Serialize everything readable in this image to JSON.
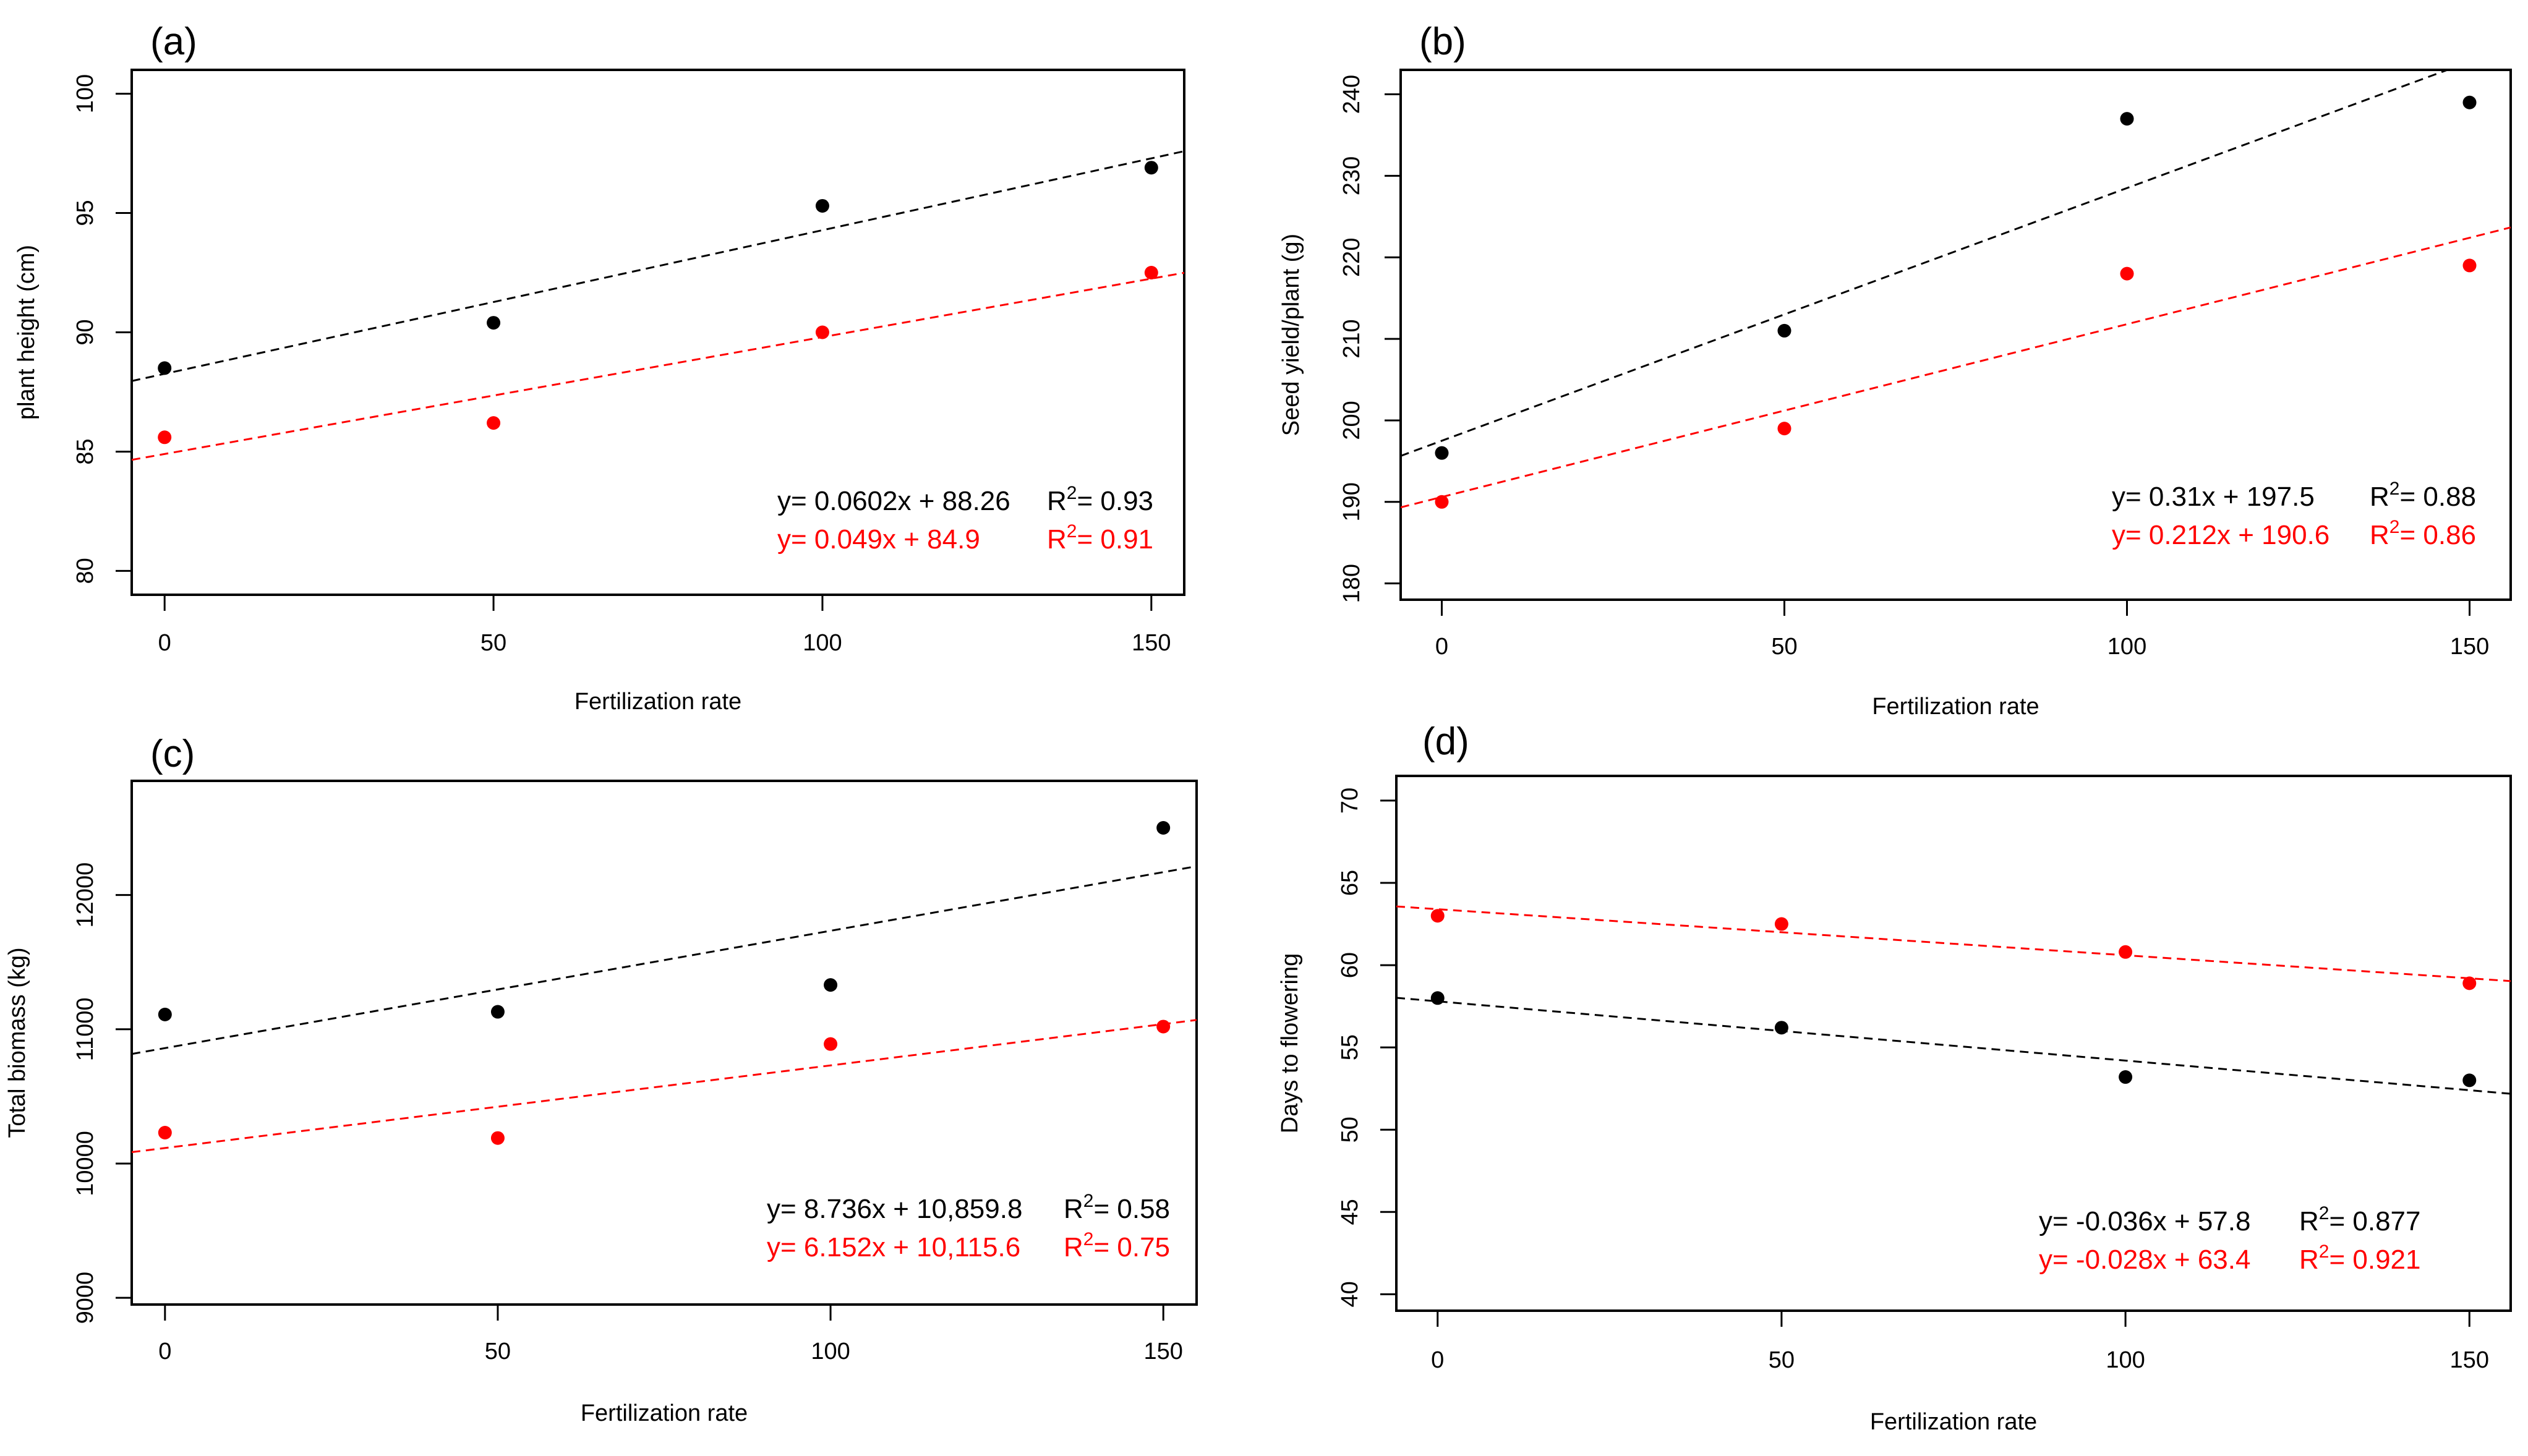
{
  "figure": {
    "background": "#ffffff"
  },
  "chart_data": [
    {
      "type": "scatter",
      "panel_label": "(a)",
      "xlabel": "Fertilization rate",
      "ylabel": "plant height (cm)",
      "xlim": [
        -5,
        155
      ],
      "ylim": [
        79,
        101
      ],
      "xticks": [
        0,
        50,
        100,
        150
      ],
      "xtick_labels": [
        "0",
        "50",
        "100",
        "150"
      ],
      "yticks": [
        80,
        85,
        90,
        95,
        100
      ],
      "ytick_labels": [
        "80",
        "85",
        "90",
        "95",
        "100"
      ],
      "grid": false,
      "series": [
        {
          "name": "black series",
          "color": "#000000",
          "x": [
            0,
            50,
            100,
            150
          ],
          "y": [
            88.5,
            90.4,
            95.3,
            96.9
          ],
          "fit": {
            "slope": 0.0602,
            "intercept": 88.26
          }
        },
        {
          "name": "red series",
          "color": "#ff0000",
          "x": [
            0,
            50,
            100,
            150
          ],
          "y": [
            85.6,
            86.2,
            90.0,
            92.5
          ],
          "fit": {
            "slope": 0.049,
            "intercept": 84.9
          }
        }
      ],
      "annotations": [
        {
          "eq": "y= 0.0602x + 88.26",
          "r2_prefix": "R",
          "r2_sup": "2",
          "r2_value": "= 0.93",
          "color": "#000000"
        },
        {
          "eq": "y= 0.049x + 84.9",
          "r2_prefix": "R",
          "r2_sup": "2",
          "r2_value": "= 0.91",
          "color": "#ff0000"
        }
      ]
    },
    {
      "type": "scatter",
      "panel_label": "(b)",
      "xlabel": "Fertilization rate",
      "ylabel": "Seed yield/plant (g)",
      "xlim": [
        -6,
        156
      ],
      "ylim": [
        178,
        243
      ],
      "xticks": [
        0,
        50,
        100,
        150
      ],
      "xtick_labels": [
        "0",
        "50",
        "100",
        "150"
      ],
      "yticks": [
        180,
        190,
        200,
        210,
        220,
        230,
        240
      ],
      "ytick_labels": [
        "180",
        "190",
        "200",
        "210",
        "220",
        "230",
        "240"
      ],
      "grid": false,
      "series": [
        {
          "name": "black series",
          "color": "#000000",
          "x": [
            0,
            50,
            100,
            150
          ],
          "y": [
            196,
            211,
            237,
            239
          ],
          "fit": {
            "slope": 0.31,
            "intercept": 197.5
          }
        },
        {
          "name": "red series",
          "color": "#ff0000",
          "x": [
            0,
            50,
            100,
            150
          ],
          "y": [
            190,
            199,
            218,
            219
          ],
          "fit": {
            "slope": 0.212,
            "intercept": 190.6
          }
        }
      ],
      "annotations": [
        {
          "eq": "y= 0.31x + 197.5",
          "r2_prefix": "R",
          "r2_sup": "2",
          "r2_value": "= 0.88",
          "color": "#000000"
        },
        {
          "eq": "y= 0.212x + 190.6",
          "r2_prefix": "R",
          "r2_sup": "2",
          "r2_value": "= 0.86",
          "color": "#ff0000"
        }
      ]
    },
    {
      "type": "scatter",
      "panel_label": "(c)",
      "xlabel": "Fertilization rate",
      "ylabel": "Total biomass (kg)",
      "xlim": [
        -5,
        155
      ],
      "ylim": [
        8950,
        12850
      ],
      "xticks": [
        0,
        50,
        100,
        150
      ],
      "xtick_labels": [
        "0",
        "50",
        "100",
        "150"
      ],
      "yticks": [
        9000,
        10000,
        11000,
        12000
      ],
      "ytick_labels": [
        "9000",
        "10000",
        "11000",
        "12000"
      ],
      "grid": false,
      "series": [
        {
          "name": "black series",
          "color": "#000000",
          "x": [
            0,
            50,
            100,
            150
          ],
          "y": [
            11110,
            11130,
            11330,
            12500
          ],
          "fit": {
            "slope": 8.736,
            "intercept": 10859.8
          }
        },
        {
          "name": "red series",
          "color": "#ff0000",
          "x": [
            0,
            50,
            100,
            150
          ],
          "y": [
            10230,
            10190,
            10890,
            11020
          ],
          "fit": {
            "slope": 6.152,
            "intercept": 10115.6
          }
        }
      ],
      "annotations": [
        {
          "eq": "y= 8.736x + 10,859.8",
          "r2_prefix": "R",
          "r2_sup": "2",
          "r2_value": "= 0.58",
          "color": "#000000"
        },
        {
          "eq": "y= 6.152x + 10,115.6",
          "r2_prefix": "R",
          "r2_sup": "2",
          "r2_value": "= 0.75",
          "color": "#ff0000"
        }
      ]
    },
    {
      "type": "scatter",
      "panel_label": "(d)",
      "xlabel": "Fertilization rate",
      "ylabel": "Days to flowering",
      "xlim": [
        -6,
        156
      ],
      "ylim": [
        39,
        71.5
      ],
      "xticks": [
        0,
        50,
        100,
        150
      ],
      "xtick_labels": [
        "0",
        "50",
        "100",
        "150"
      ],
      "yticks": [
        40,
        45,
        50,
        55,
        60,
        65,
        70
      ],
      "ytick_labels": [
        "40",
        "45",
        "50",
        "55",
        "60",
        "65",
        "70"
      ],
      "grid": false,
      "series": [
        {
          "name": "black series",
          "color": "#000000",
          "x": [
            0,
            50,
            100,
            150
          ],
          "y": [
            58.0,
            56.2,
            53.2,
            53.0
          ],
          "fit": {
            "slope": -0.036,
            "intercept": 57.8
          }
        },
        {
          "name": "red series",
          "color": "#ff0000",
          "x": [
            0,
            50,
            100,
            150
          ],
          "y": [
            63.0,
            62.5,
            60.8,
            58.9
          ],
          "fit": {
            "slope": -0.028,
            "intercept": 63.4
          }
        }
      ],
      "annotations": [
        {
          "eq": "y= -0.036x + 57.8",
          "r2_prefix": "R",
          "r2_sup": "2",
          "r2_value": "= 0.877",
          "color": "#000000"
        },
        {
          "eq": "y= -0.028x + 63.4",
          "r2_prefix": "R",
          "r2_sup": "2",
          "r2_value": "= 0.921",
          "color": "#ff0000"
        }
      ]
    }
  ]
}
